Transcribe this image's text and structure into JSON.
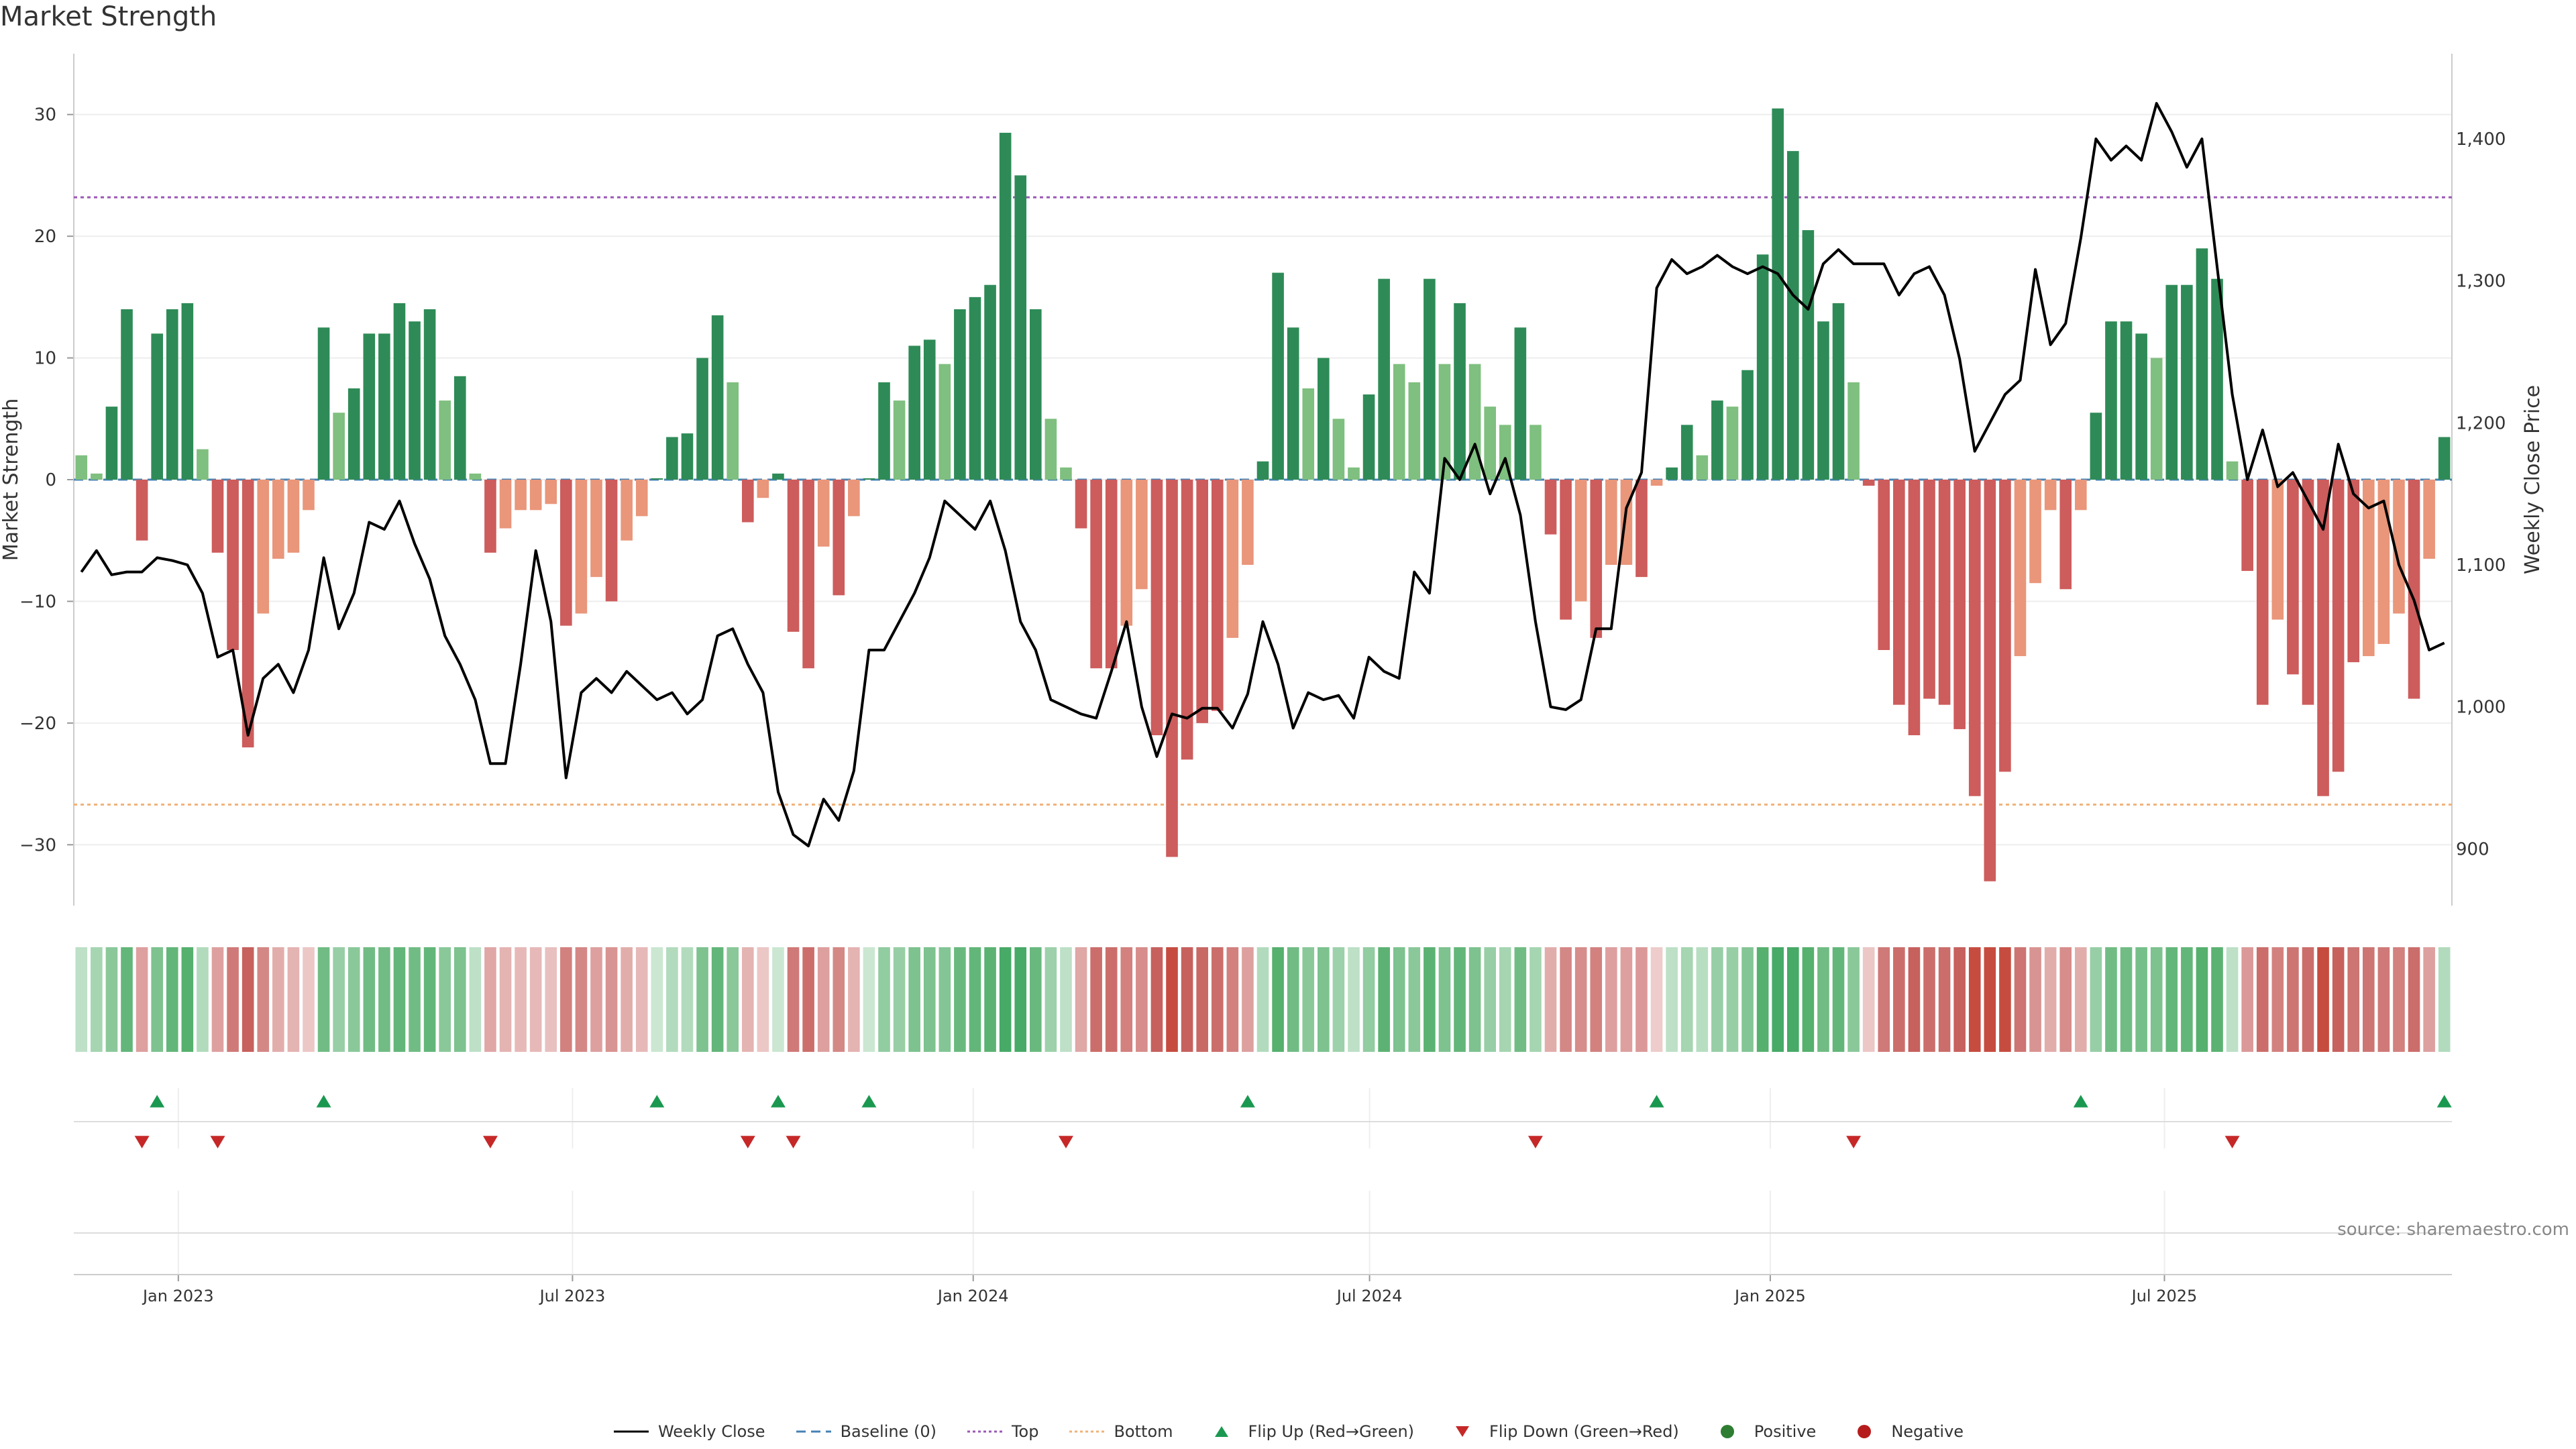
{
  "title": "Market Strength",
  "source": "source: sharemaestro.com",
  "colors": {
    "strong_green": "#2e8b57",
    "light_green": "#7fbf7f",
    "strong_red": "#cd5c5c",
    "light_red": "#e9967a",
    "top_line": "#9b59b6",
    "bottom_line": "#f0b27a",
    "baseline": "#4682b4",
    "price_line": "#000000",
    "flip_up": "#1a9850",
    "flip_down": "#c62828",
    "positive": "#2e7d32",
    "negative": "#b71c1c"
  },
  "legend": [
    {
      "key": "weekly_close",
      "label": "Weekly Close",
      "type": "line",
      "color": "#000000",
      "dash": ""
    },
    {
      "key": "baseline",
      "label": "Baseline (0)",
      "type": "line",
      "color": "#4682b4",
      "dash": "14,8"
    },
    {
      "key": "top",
      "label": "Top",
      "type": "line",
      "color": "#9b59b6",
      "dash": "4,4"
    },
    {
      "key": "bottom",
      "label": "Bottom",
      "type": "line",
      "color": "#f0b27a",
      "dash": "4,4"
    },
    {
      "key": "flip_up",
      "label": "Flip Up (Red→Green)",
      "type": "tri-up",
      "color": "#1a9850"
    },
    {
      "key": "flip_down",
      "label": "Flip Down (Green→Red)",
      "type": "tri-down",
      "color": "#c62828"
    },
    {
      "key": "positive",
      "label": "Positive",
      "type": "dot",
      "color": "#2e7d32"
    },
    {
      "key": "negative",
      "label": "Negative",
      "type": "dot",
      "color": "#b71c1c"
    }
  ],
  "chart_data": {
    "type": "bar",
    "title": "Market Strength",
    "ylabel": "Market Strength",
    "y2label": "Weekly Close Price",
    "ylim": [
      -35,
      35
    ],
    "y2lim": [
      860,
      1460
    ],
    "yticks": [
      30,
      20,
      10,
      0,
      -10,
      -20,
      -30
    ],
    "y2ticks": [
      {
        "value": 1400,
        "label": "1,400"
      },
      {
        "value": 1300,
        "label": "1,300"
      },
      {
        "value": 1200,
        "label": "1,200"
      },
      {
        "value": 1100,
        "label": "1,100"
      },
      {
        "value": 1000,
        "label": "1,000"
      },
      {
        "value": 900,
        "label": "900"
      }
    ],
    "top_threshold": 23.2,
    "bottom_threshold": -26.7,
    "x_start": "2022-11-14",
    "x_end": "2025-11-10",
    "xticks": [
      {
        "date": "2023-01-01",
        "label": "Jan 2023"
      },
      {
        "date": "2023-07-01",
        "label": "Jul 2023"
      },
      {
        "date": "2024-01-01",
        "label": "Jan 2024"
      },
      {
        "date": "2024-07-01",
        "label": "Jul 2024"
      },
      {
        "date": "2025-01-01",
        "label": "Jan 2025"
      },
      {
        "date": "2025-07-01",
        "label": "Jul 2025"
      }
    ],
    "strength": [
      2,
      0.5,
      6,
      14,
      -5,
      12,
      14,
      14.5,
      2.5,
      -6,
      -14,
      -22,
      -11,
      -6.5,
      -6,
      -2.5,
      12.5,
      5.5,
      7.5,
      12,
      12,
      14.5,
      13,
      14,
      6.5,
      8.5,
      0.5,
      -6,
      -4,
      -2.5,
      -2.5,
      -2,
      -12,
      -11,
      -8,
      -10,
      -5,
      -3,
      0,
      3.5,
      3.8,
      10,
      13.5,
      8,
      -3.5,
      -1.5,
      0.5,
      -12.5,
      -15.5,
      -5.5,
      -9.5,
      -3,
      0,
      8,
      6.5,
      11,
      11.5,
      9.5,
      14,
      15,
      16,
      28.5,
      25,
      14,
      5,
      1,
      -4,
      -15.5,
      -15.5,
      -12,
      -9,
      -21,
      -31,
      -23,
      -20,
      -19,
      -13,
      -7,
      1.5,
      17,
      12.5,
      7.5,
      10,
      5,
      1,
      7,
      16.5,
      9.5,
      8,
      16.5,
      9.5,
      14.5,
      9.5,
      6,
      4.5,
      12.5,
      4.5,
      -4.5,
      -11.5,
      -10,
      -13,
      -7,
      -7,
      -8,
      -0.5,
      1,
      4.5,
      2,
      6.5,
      6,
      9,
      18.5,
      30.5,
      27,
      20.5,
      13,
      14.5,
      8,
      -0.5,
      -14,
      -18.5,
      -21,
      -18,
      -18.5,
      -20.5,
      -26,
      -33,
      -24,
      -14.5,
      -8.5,
      -2.5,
      -9,
      -2.5,
      5.5,
      13,
      13,
      12,
      10,
      16,
      16,
      19,
      16.5,
      1.5,
      -7.5,
      -18.5,
      -11.5,
      -16,
      -18.5,
      -26,
      -24,
      -15,
      -14.5,
      -13.5,
      -11,
      -18,
      -6.5,
      3.5
    ],
    "weekly_close": [
      1095,
      1110,
      1093,
      1095,
      1095,
      1105,
      1103,
      1100,
      1080,
      1035,
      1040,
      980,
      1020,
      1030,
      1010,
      1040,
      1105,
      1055,
      1080,
      1130,
      1125,
      1145,
      1115,
      1090,
      1050,
      1030,
      1005,
      960,
      960,
      1030,
      1110,
      1060,
      950,
      1010,
      1020,
      1010,
      1025,
      1015,
      1005,
      1010,
      995,
      1005,
      1050,
      1055,
      1030,
      1010,
      940,
      910,
      902,
      935,
      920,
      955,
      1040,
      1040,
      1060,
      1080,
      1105,
      1145,
      1135,
      1125,
      1145,
      1110,
      1060,
      1040,
      1005,
      1000,
      995,
      992,
      1025,
      1060,
      1000,
      965,
      995,
      992,
      999,
      999,
      985,
      1009,
      1060,
      1030,
      985,
      1010,
      1005,
      1008,
      992,
      1035,
      1025,
      1020,
      1095,
      1080,
      1175,
      1160,
      1185,
      1150,
      1175,
      1135,
      1060,
      1000,
      998,
      1005,
      1055,
      1055,
      1140,
      1165,
      1295,
      1315,
      1305,
      1310,
      1318,
      1310,
      1305,
      1310,
      1305,
      1290,
      1280,
      1312,
      1322,
      1312,
      1312,
      1312,
      1290,
      1305,
      1310,
      1290,
      1245,
      1180,
      1200,
      1220,
      1230,
      1308,
      1255,
      1270,
      1330,
      1400,
      1385,
      1395,
      1385,
      1425,
      1405,
      1380,
      1400,
      1310,
      1220,
      1160,
      1195,
      1155,
      1165,
      1145,
      1125,
      1185,
      1150,
      1140,
      1145,
      1100,
      1075,
      1040,
      1045
    ],
    "tiles": [
      0.2,
      0.4,
      0.6,
      0.9,
      -0.5,
      0.7,
      0.9,
      1,
      0.3,
      -0.5,
      -0.8,
      -1,
      -0.7,
      -0.4,
      -0.35,
      -0.2,
      0.8,
      0.5,
      0.6,
      0.8,
      0.8,
      0.9,
      0.8,
      0.9,
      0.6,
      0.7,
      0.2,
      -0.45,
      -0.35,
      -0.3,
      -0.3,
      -0.25,
      -0.75,
      -0.7,
      -0.5,
      -0.6,
      -0.4,
      -0.3,
      0.1,
      0.3,
      0.3,
      0.7,
      0.9,
      0.6,
      -0.35,
      -0.2,
      0.1,
      -0.8,
      -0.9,
      -0.5,
      -0.7,
      -0.35,
      0.1,
      0.55,
      0.5,
      0.7,
      0.7,
      0.65,
      0.85,
      0.9,
      0.95,
      1.2,
      1.1,
      0.85,
      0.45,
      0.2,
      -0.45,
      -0.9,
      -0.9,
      -0.75,
      -0.65,
      -1,
      -1.2,
      -1,
      -0.95,
      -0.9,
      -0.75,
      -0.5,
      0.3,
      1,
      0.8,
      0.6,
      0.7,
      0.45,
      0.2,
      0.55,
      0.95,
      0.7,
      0.6,
      0.95,
      0.7,
      0.9,
      0.7,
      0.5,
      0.4,
      0.8,
      0.4,
      -0.4,
      -0.7,
      -0.65,
      -0.75,
      -0.5,
      -0.5,
      -0.55,
      -0.15,
      0.2,
      0.4,
      0.25,
      0.5,
      0.5,
      0.65,
      1,
      1.2,
      1.1,
      1,
      0.8,
      0.9,
      0.6,
      -0.2,
      -0.8,
      -0.9,
      -1,
      -0.9,
      -0.9,
      -1,
      -1.1,
      -1.2,
      -1.1,
      -0.85,
      -0.6,
      -0.4,
      -0.65,
      -0.4,
      0.5,
      0.8,
      0.8,
      0.75,
      0.7,
      0.9,
      0.9,
      1,
      0.95,
      0.2,
      -0.55,
      -0.9,
      -0.75,
      -0.85,
      -0.9,
      -1.1,
      -1.05,
      -0.85,
      -0.85,
      -0.8,
      -0.75,
      -0.9,
      -0.5,
      0.3
    ],
    "flip_up_index": [
      5,
      16,
      38,
      46,
      52,
      77,
      104,
      132,
      156
    ],
    "flip_down_index": [
      4,
      9,
      27,
      44,
      47,
      65,
      96,
      117,
      142
    ]
  }
}
